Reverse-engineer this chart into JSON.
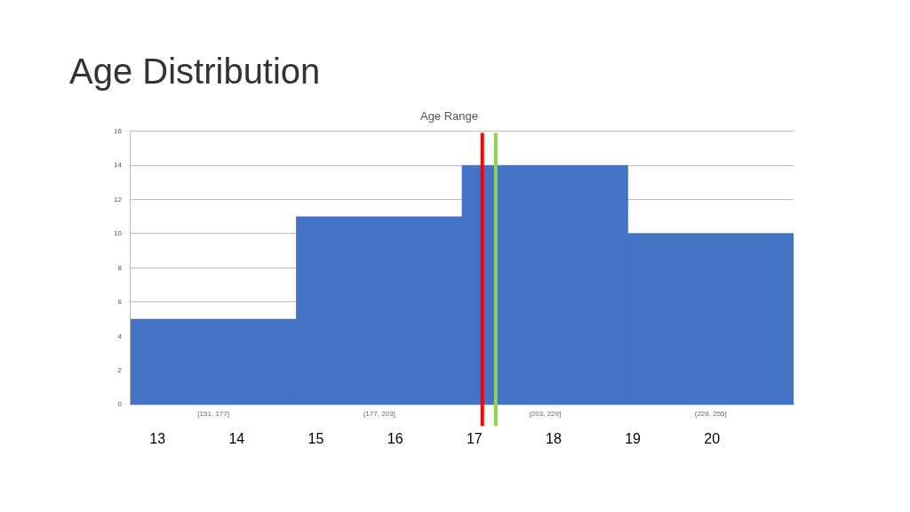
{
  "chart_data": {
    "type": "bar",
    "title": "Age Distribution",
    "subtitle": "Age Range",
    "categories": [
      "[151, 177]",
      "(177, 203]",
      "(203, 229]",
      "(229, 255]"
    ],
    "values": [
      5,
      11,
      14,
      10
    ],
    "color": "#4472c4",
    "x2lim": [
      12.66,
      21.03
    ],
    "x2ticks": [
      13,
      14,
      15,
      16,
      17,
      18,
      19,
      20
    ],
    "ylim": [
      0,
      16
    ],
    "yticks": [
      0,
      2,
      4,
      6,
      8,
      10,
      12,
      14,
      16
    ],
    "grid": "y",
    "legend": false,
    "ref_lines": [
      {
        "axis": "x2",
        "value": 17.1,
        "color": "#ff0000"
      },
      {
        "axis": "x2",
        "value": 17.27,
        "color": "#92d050"
      }
    ]
  }
}
